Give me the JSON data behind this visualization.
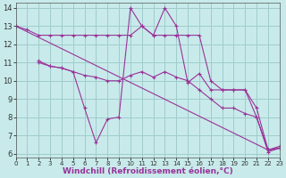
{
  "lines": [
    {
      "x": [
        0,
        1,
        2,
        3,
        4,
        5,
        6,
        7,
        8,
        9,
        10,
        11,
        12,
        13,
        14,
        15,
        16,
        17,
        18,
        19,
        20,
        21,
        22,
        23
      ],
      "y": [
        13.0,
        12.8,
        12.5,
        12.5,
        12.5,
        12.5,
        12.5,
        12.5,
        12.5,
        12.5,
        12.5,
        13.0,
        12.5,
        12.5,
        12.5,
        12.5,
        12.5,
        10.0,
        9.5,
        9.5,
        9.5,
        8.5,
        6.2,
        6.3
      ]
    },
    {
      "x": [
        0,
        22,
        23
      ],
      "y": [
        13.0,
        6.2,
        6.3
      ]
    },
    {
      "x": [
        2,
        3,
        4,
        5,
        6,
        7,
        8,
        9,
        10,
        11,
        12,
        13,
        14,
        15,
        16,
        17,
        18,
        19,
        20,
        21,
        22,
        23
      ],
      "y": [
        11.1,
        10.8,
        10.7,
        10.5,
        8.5,
        6.6,
        7.9,
        8.0,
        14.0,
        13.0,
        12.5,
        14.0,
        13.0,
        9.9,
        10.4,
        9.5,
        9.5,
        9.5,
        9.5,
        8.0,
        6.1,
        6.3
      ]
    },
    {
      "x": [
        2,
        3,
        4,
        5,
        6,
        7,
        8,
        9,
        10,
        11,
        12,
        13,
        14,
        15,
        16,
        17,
        18,
        19,
        20,
        21,
        22,
        23
      ],
      "y": [
        11.0,
        10.8,
        10.7,
        10.5,
        10.3,
        10.2,
        10.0,
        10.0,
        10.3,
        10.5,
        10.2,
        10.5,
        10.2,
        10.0,
        9.5,
        9.0,
        8.5,
        8.5,
        8.2,
        8.0,
        6.2,
        6.4
      ]
    }
  ],
  "line_color": "#993399",
  "marker": "+",
  "bg_color": "#c8eaea",
  "grid_color": "#a0cccc",
  "xlabel": "Windchill (Refroidissement éolien,°C)",
  "xlim": [
    0,
    23
  ],
  "ylim": [
    5.8,
    14.3
  ],
  "xticks": [
    0,
    1,
    2,
    3,
    4,
    5,
    6,
    7,
    8,
    9,
    10,
    11,
    12,
    13,
    14,
    15,
    16,
    17,
    18,
    19,
    20,
    21,
    22,
    23
  ],
  "yticks": [
    6,
    7,
    8,
    9,
    10,
    11,
    12,
    13,
    14
  ],
  "xtick_fontsize": 5.0,
  "ytick_fontsize": 6.0,
  "xlabel_fontsize": 6.5
}
